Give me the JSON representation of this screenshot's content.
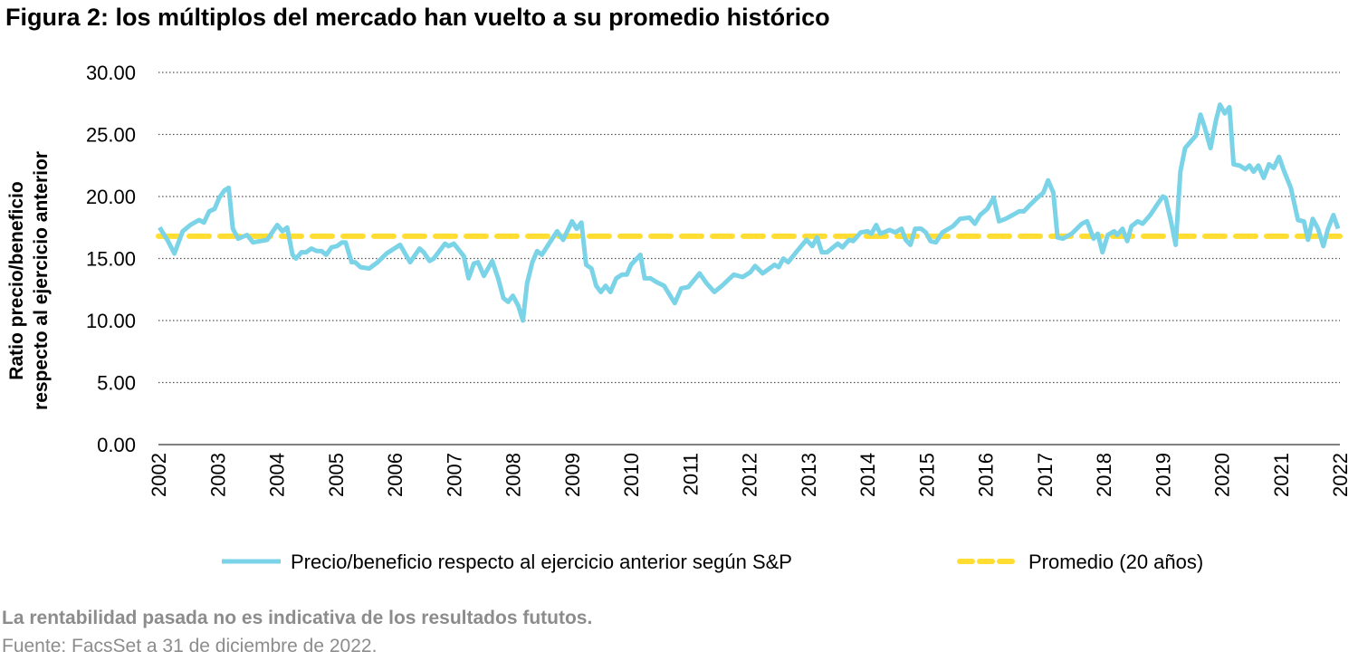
{
  "title": "Figura 2: los múltiplos del mercado han vuelto a su promedio histórico",
  "footer": {
    "note": "La rentabilidad pasada no es indicativa de los resultados fututos.",
    "source": "Fuente: FacsSet a 31 de diciembre de 2022."
  },
  "chart_data": {
    "type": "line",
    "ylabel": [
      "Ratio precio/beneficio",
      "respecto al ejercicio anterior"
    ],
    "xlabel": "",
    "xlim": [
      2002,
      2022
    ],
    "ylim": [
      0,
      30
    ],
    "yticks": [
      "0.00",
      "5.00",
      "10.00",
      "15.00",
      "20.00",
      "25.00",
      "30.00"
    ],
    "xticks": [
      "2002",
      "2003",
      "2004",
      "2005",
      "2006",
      "2007",
      "2008",
      "2009",
      "2010",
      "2011",
      "2012",
      "2013",
      "2014",
      "2015",
      "2016",
      "2017",
      "2018",
      "2019",
      "2020",
      "2021",
      "2022"
    ],
    "grid": "horizontal dotted",
    "legend_position": "bottom",
    "series": [
      {
        "name": "Precio/beneficio respecto al ejercicio anterior según S&P",
        "color": "#7AD3E6",
        "style": "solid",
        "x": [
          2002.02,
          2002.15,
          2002.27,
          2002.41,
          2002.54,
          2002.61,
          2002.69,
          2002.77,
          2002.86,
          2002.95,
          2003.03,
          2003.12,
          2003.19,
          2003.26,
          2003.35,
          2003.5,
          2003.6,
          2003.84,
          2004.01,
          2004.1,
          2004.18,
          2004.27,
          2004.33,
          2004.42,
          2004.5,
          2004.59,
          2004.68,
          2004.76,
          2004.84,
          2004.93,
          2005.02,
          2005.11,
          2005.17,
          2005.27,
          2005.33,
          2005.42,
          2005.57,
          2005.71,
          2005.86,
          2006.09,
          2006.26,
          2006.42,
          2006.49,
          2006.59,
          2006.66,
          2006.85,
          2006.91,
          2007.0,
          2007.17,
          2007.25,
          2007.34,
          2007.41,
          2007.51,
          2007.65,
          2007.75,
          2007.84,
          2007.92,
          2008.0,
          2008.09,
          2008.17,
          2008.24,
          2008.33,
          2008.41,
          2008.49,
          2008.6,
          2008.75,
          2008.85,
          2009.0,
          2009.08,
          2009.16,
          2009.24,
          2009.33,
          2009.41,
          2009.49,
          2009.57,
          2009.65,
          2009.75,
          2009.85,
          2009.93,
          2010.0,
          2010.16,
          2010.23,
          2010.33,
          2010.43,
          2010.56,
          2010.74,
          2010.85,
          2010.97,
          2011.16,
          2011.28,
          2011.41,
          2011.54,
          2011.74,
          2011.89,
          2012.02,
          2012.1,
          2012.23,
          2012.43,
          2012.5,
          2012.58,
          2012.66,
          2012.81,
          2012.97,
          2013.07,
          2013.15,
          2013.23,
          2013.32,
          2013.5,
          2013.58,
          2013.69,
          2013.76,
          2013.89,
          2014.0,
          2014.07,
          2014.15,
          2014.22,
          2014.38,
          2014.47,
          2014.58,
          2014.65,
          2014.73,
          2014.81,
          2014.91,
          2014.99,
          2015.07,
          2015.16,
          2015.27,
          2015.45,
          2015.57,
          2015.73,
          2015.82,
          2015.91,
          2016.03,
          2016.14,
          2016.23,
          2016.34,
          2016.46,
          2016.57,
          2016.65,
          2016.75,
          2016.88,
          2016.98,
          2017.06,
          2017.15,
          2017.22,
          2017.31,
          2017.46,
          2017.63,
          2017.72,
          2017.83,
          2017.9,
          2017.98,
          2018.07,
          2018.18,
          2018.23,
          2018.32,
          2018.4,
          2018.47,
          2018.58,
          2018.66,
          2018.79,
          2018.9,
          2019.0,
          2019.05,
          2019.15,
          2019.22,
          2019.3,
          2019.38,
          2019.56,
          2019.64,
          2019.71,
          2019.81,
          2019.9,
          2019.97,
          2020.05,
          2020.13,
          2020.2,
          2020.3,
          2020.4,
          2020.47,
          2020.54,
          2020.62,
          2020.71,
          2020.8,
          2020.88,
          2020.97,
          2021.05,
          2021.17,
          2021.29,
          2021.39,
          2021.46,
          2021.54,
          2021.63,
          2021.72,
          2021.8,
          2021.89,
          2021.97
        ],
        "y": [
          17.5,
          16.5,
          15.4,
          17.2,
          17.7,
          17.9,
          18.1,
          17.9,
          18.8,
          19.0,
          19.9,
          20.5,
          20.7,
          17.4,
          16.6,
          16.9,
          16.3,
          16.5,
          17.7,
          17.2,
          17.5,
          15.3,
          15.0,
          15.5,
          15.5,
          15.8,
          15.6,
          15.6,
          15.3,
          15.9,
          16.0,
          16.3,
          16.3,
          14.7,
          14.7,
          14.3,
          14.2,
          14.7,
          15.4,
          16.1,
          14.7,
          15.8,
          15.5,
          14.8,
          15.0,
          16.2,
          16.0,
          16.2,
          15.2,
          13.4,
          14.6,
          14.7,
          13.6,
          14.8,
          13.4,
          11.8,
          11.5,
          12.0,
          11.2,
          10.0,
          13.0,
          14.7,
          15.6,
          15.3,
          16.1,
          17.2,
          16.5,
          18.0,
          17.4,
          17.9,
          14.5,
          14.2,
          12.8,
          12.3,
          12.8,
          12.3,
          13.4,
          13.7,
          13.7,
          14.5,
          15.3,
          13.4,
          13.4,
          13.1,
          12.8,
          11.4,
          12.6,
          12.7,
          13.8,
          13.0,
          12.3,
          12.8,
          13.7,
          13.5,
          13.9,
          14.4,
          13.8,
          14.5,
          14.3,
          15.0,
          14.7,
          15.6,
          16.5,
          16.0,
          16.7,
          15.5,
          15.5,
          16.2,
          15.9,
          16.5,
          16.4,
          17.1,
          17.2,
          17.0,
          17.7,
          17.0,
          17.3,
          17.1,
          17.4,
          16.5,
          16.1,
          17.4,
          17.4,
          17.1,
          16.4,
          16.3,
          17.1,
          17.6,
          18.2,
          18.3,
          17.8,
          18.5,
          19.0,
          19.9,
          18.0,
          18.2,
          18.5,
          18.8,
          18.8,
          19.3,
          19.9,
          20.3,
          21.3,
          20.3,
          16.7,
          16.6,
          17.0,
          17.8,
          18.0,
          16.6,
          17.0,
          15.5,
          16.9,
          17.2,
          16.9,
          17.4,
          16.4,
          17.6,
          18.0,
          17.8,
          18.5,
          19.3,
          20.0,
          19.9,
          17.8,
          16.1,
          22.0,
          23.9,
          24.9,
          26.6,
          25.6,
          23.9,
          26.1,
          27.4,
          26.7,
          27.2,
          22.6,
          22.5,
          22.2,
          22.5,
          22.0,
          22.5,
          21.5,
          22.6,
          22.3,
          23.2,
          22.1,
          20.7,
          18.1,
          18.0,
          16.5,
          18.2,
          17.4,
          16.0,
          17.4,
          18.5,
          17.4
        ]
      },
      {
        "name": "Promedio (20 años)",
        "color": "#FFDD33",
        "style": "dashed",
        "value": 16.8
      }
    ]
  }
}
